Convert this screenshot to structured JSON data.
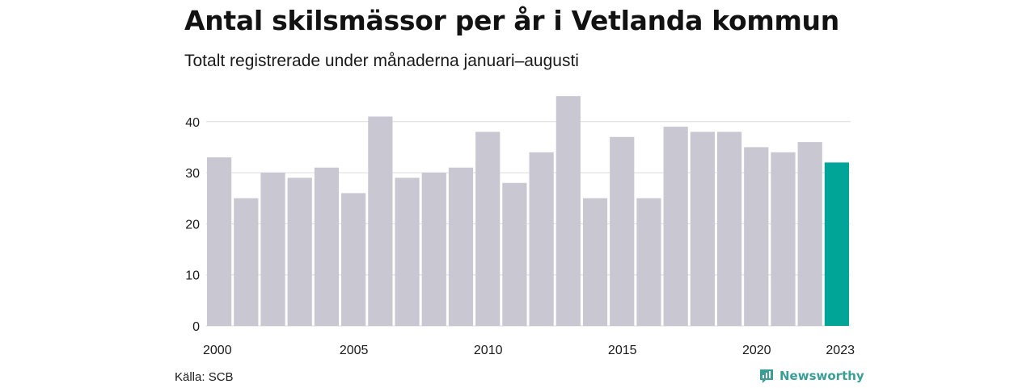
{
  "title": "Antal skilsmässor per år i Vetlanda kommun",
  "subtitle": "Totalt registrerade under månaderna januari–augusti",
  "source": "Källa: SCB",
  "brand": "Newsworthy",
  "colors": {
    "bar": "#c8c7d2",
    "highlight": "#00a598",
    "grid": "#dcdce0",
    "brand": "#3a9e97"
  },
  "chart_data": {
    "type": "bar",
    "categories": [
      "2000",
      "2001",
      "2002",
      "2003",
      "2004",
      "2005",
      "2006",
      "2007",
      "2008",
      "2009",
      "2010",
      "2011",
      "2012",
      "2013",
      "2014",
      "2015",
      "2016",
      "2017",
      "2018",
      "2019",
      "2020",
      "2021",
      "2022",
      "2023"
    ],
    "values": [
      33,
      25,
      30,
      29,
      31,
      26,
      41,
      29,
      30,
      31,
      38,
      28,
      34,
      45,
      25,
      37,
      25,
      39,
      38,
      38,
      35,
      34,
      36,
      32
    ],
    "highlight": "2023",
    "x_tick_labels": [
      "2000",
      "2005",
      "2010",
      "2015",
      "2020",
      "2023"
    ],
    "y_ticks": [
      0,
      10,
      20,
      30,
      40
    ],
    "ylim": [
      0,
      45
    ],
    "grid": true
  }
}
